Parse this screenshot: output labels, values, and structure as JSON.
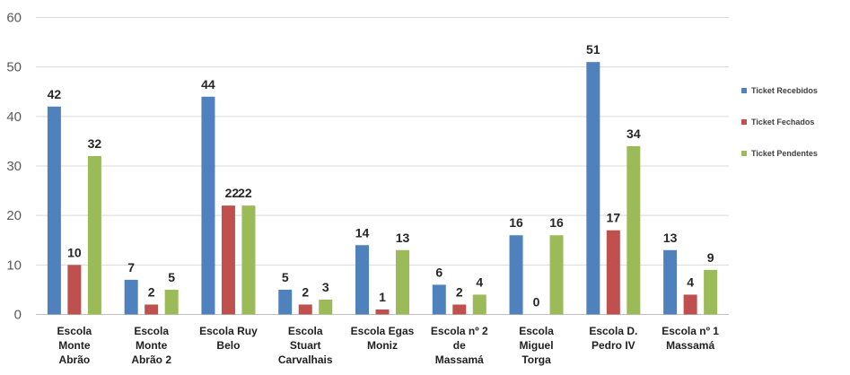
{
  "chart_data": {
    "type": "bar",
    "title": "",
    "xlabel": "",
    "ylabel": "",
    "ylim": [
      0,
      60
    ],
    "yticks": [
      0,
      10,
      20,
      30,
      40,
      50,
      60
    ],
    "grid": true,
    "legend_position": "right",
    "categories": [
      [
        "Escola",
        "Monte",
        "Abrão"
      ],
      [
        "Escola",
        "Monte",
        "Abrão 2"
      ],
      [
        "Escola Ruy",
        "Belo"
      ],
      [
        "Escola",
        "Stuart",
        "Carvalhais"
      ],
      [
        "Escola Egas",
        "Moniz"
      ],
      [
        "Escola nº 2",
        "de",
        "Massamá"
      ],
      [
        "Escola",
        "Miguel",
        "Torga"
      ],
      [
        "Escola D.",
        "Pedro IV"
      ],
      [
        "Escola nº 1",
        "Massamá"
      ]
    ],
    "series": [
      {
        "name": "Ticket Recebidos",
        "color": "#4f81bd",
        "values": [
          42,
          7,
          44,
          5,
          14,
          6,
          16,
          51,
          13
        ]
      },
      {
        "name": "Ticket Fechados",
        "color": "#c0504d",
        "values": [
          10,
          2,
          22,
          2,
          1,
          2,
          0,
          17,
          4
        ]
      },
      {
        "name": "Ticket Pendentes",
        "color": "#9bbb59",
        "values": [
          32,
          5,
          22,
          3,
          13,
          4,
          16,
          34,
          9
        ]
      }
    ]
  }
}
